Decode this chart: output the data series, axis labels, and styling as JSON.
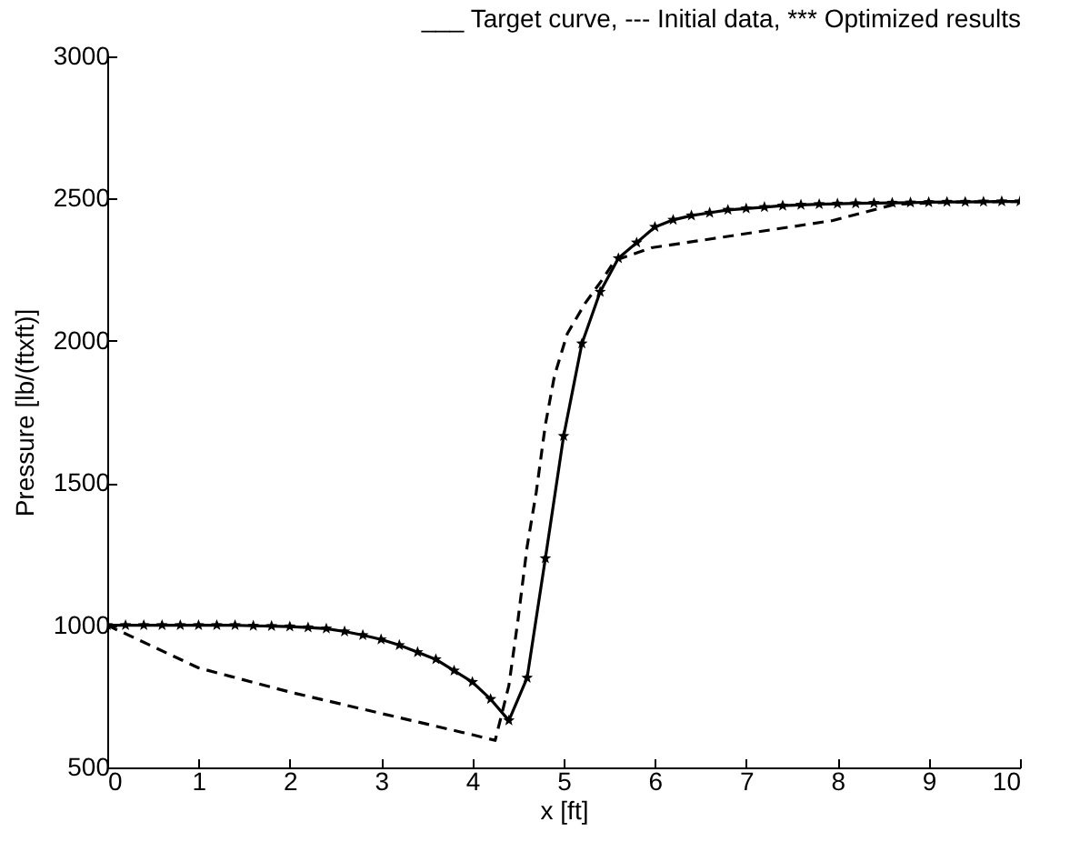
{
  "chart_data": {
    "type": "line",
    "title": "___ Target curve, --- Initial data,  *** Optimized results",
    "xlabel": "x [ft]",
    "ylabel": "Pressure [lb/(ftxft)]",
    "xlim": [
      0,
      10
    ],
    "ylim": [
      500,
      3000
    ],
    "xticks": [
      0,
      1,
      2,
      3,
      4,
      5,
      6,
      7,
      8,
      9,
      10
    ],
    "yticks": [
      500,
      1000,
      1500,
      2000,
      2500,
      3000
    ],
    "grid": false,
    "series": [
      {
        "line_style": "solid",
        "marker": "none",
        "color": "#000000",
        "x": [
          0,
          0.2,
          0.4,
          0.6,
          0.8,
          1.0,
          1.2,
          1.4,
          1.6,
          1.8,
          2.0,
          2.2,
          2.4,
          2.6,
          2.8,
          3.0,
          3.2,
          3.4,
          3.6,
          3.8,
          4.0,
          4.2,
          4.4,
          4.6,
          4.8,
          5.0,
          5.2,
          5.4,
          5.6,
          5.8,
          6.0,
          6.2,
          6.4,
          6.6,
          6.8,
          7.0,
          7.2,
          7.4,
          7.6,
          7.8,
          8.0,
          8.2,
          8.4,
          8.6,
          8.8,
          9.0,
          9.2,
          9.4,
          9.6,
          9.8,
          10.0
        ],
        "values": [
          1000,
          1000,
          1000,
          1000,
          1000,
          1000,
          1000,
          1000,
          998,
          997,
          995,
          992,
          988,
          978,
          965,
          950,
          930,
          905,
          880,
          840,
          800,
          740,
          665,
          815,
          1235,
          1665,
          1990,
          2172,
          2290,
          2345,
          2400,
          2425,
          2440,
          2450,
          2460,
          2465,
          2470,
          2475,
          2478,
          2480,
          2482,
          2483,
          2484,
          2485,
          2486,
          2487,
          2488,
          2488,
          2489,
          2490,
          2490
        ]
      },
      {
        "line_style": "dashed",
        "marker": "none",
        "color": "#000000",
        "x": [
          0,
          1,
          2,
          3,
          4,
          4.25,
          4.4,
          4.5,
          4.6,
          4.7,
          4.8,
          4.9,
          5.04,
          5.24,
          5.43,
          5.56,
          5.96,
          6.63,
          7.29,
          7.95,
          8.63,
          9.3,
          10
        ],
        "values": [
          1000,
          850,
          765,
          690,
          615,
          595,
          788,
          1019,
          1276,
          1468,
          1705,
          1878,
          2025,
          2134,
          2218,
          2282,
          2327,
          2359,
          2391,
          2423,
          2480,
          2488,
          2490
        ]
      },
      {
        "type": "scatter",
        "marker": "star",
        "color": "#000000",
        "x": [
          0,
          0.2,
          0.4,
          0.6,
          0.8,
          1.0,
          1.2,
          1.4,
          1.6,
          1.8,
          2.0,
          2.2,
          2.4,
          2.6,
          2.8,
          3.0,
          3.2,
          3.4,
          3.6,
          3.8,
          4.0,
          4.2,
          4.4,
          4.6,
          4.8,
          5.0,
          5.2,
          5.4,
          5.6,
          5.8,
          6.0,
          6.2,
          6.4,
          6.6,
          6.8,
          7.0,
          7.2,
          7.4,
          7.6,
          7.8,
          8.0,
          8.2,
          8.4,
          8.6,
          8.8,
          9.0,
          9.2,
          9.4,
          9.6,
          9.8,
          10.0
        ],
        "values": [
          1000,
          1000,
          1000,
          1000,
          1000,
          1000,
          1000,
          1000,
          998,
          997,
          995,
          992,
          988,
          978,
          965,
          950,
          930,
          905,
          880,
          840,
          800,
          740,
          665,
          815,
          1235,
          1665,
          1990,
          2172,
          2290,
          2345,
          2400,
          2425,
          2440,
          2450,
          2460,
          2465,
          2470,
          2475,
          2478,
          2480,
          2482,
          2483,
          2484,
          2485,
          2486,
          2487,
          2488,
          2488,
          2489,
          2490,
          2490
        ]
      }
    ]
  }
}
